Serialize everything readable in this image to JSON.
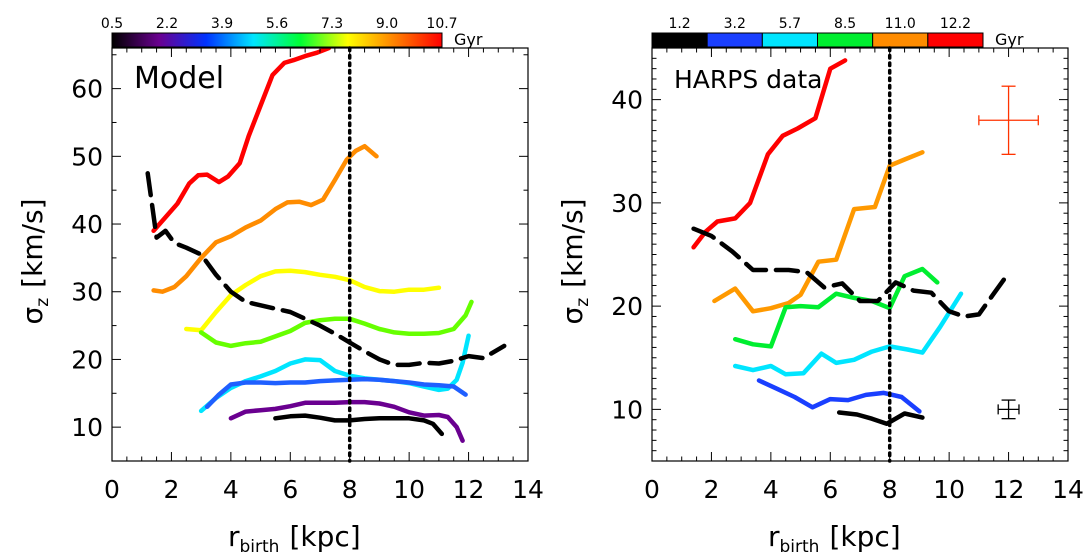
{
  "colorbar_unit": "Gyr",
  "chart_data": [
    {
      "type": "line",
      "panel_label": "Model",
      "xlabel_main": "r",
      "xlabel_sub": "birth",
      "xlabel_unit": "[kpc]",
      "ylabel_main": "σ",
      "ylabel_sub": "z",
      "ylabel_unit": "[km/s]",
      "xlim": [
        0,
        14
      ],
      "ylim": [
        5,
        66
      ],
      "xticks": [
        0,
        2,
        4,
        6,
        8,
        10,
        12,
        14
      ],
      "yticks": [
        10,
        20,
        30,
        40,
        50,
        60
      ],
      "vline_x": 8,
      "colorbar": {
        "type": "gradient",
        "tick_labels": [
          "0.5",
          "2.2",
          "3.9",
          "5.6",
          "7.3",
          "9.0",
          "10.7"
        ],
        "colors": [
          "#000000",
          "#6a0090",
          "#0033ff",
          "#00e5ff",
          "#00ff33",
          "#ffff00",
          "#ff8000",
          "#ff0000"
        ]
      },
      "series": [
        {
          "color": "#ff0000",
          "dashed": false,
          "x": [
            1.4,
            1.8,
            2.2,
            2.6,
            2.9,
            3.2,
            3.6,
            3.9,
            4.3,
            4.6,
            5.0,
            5.4,
            5.8,
            6.1,
            6.5,
            6.9,
            7.3
          ],
          "y": [
            39,
            41,
            43,
            46,
            47.2,
            47.3,
            46.2,
            47,
            49,
            53,
            57.5,
            62,
            63.8,
            64.2,
            64.8,
            65.3,
            66
          ]
        },
        {
          "color": "#ff8c00",
          "dashed": false,
          "x": [
            1.4,
            1.7,
            2.1,
            2.5,
            3.0,
            3.5,
            4.0,
            4.5,
            5.0,
            5.5,
            5.9,
            6.3,
            6.7,
            7.1,
            7.5,
            7.9,
            8.2,
            8.5,
            8.9
          ],
          "y": [
            30.2,
            30,
            30.7,
            32.3,
            35,
            37.3,
            38.2,
            39.5,
            40.5,
            42.2,
            43.2,
            43.3,
            42.8,
            43.6,
            46.5,
            49.5,
            50.8,
            51.5,
            50
          ]
        },
        {
          "color": "#ffff00",
          "dashed": false,
          "x": [
            2.5,
            3.0,
            3.5,
            4.0,
            4.5,
            5.0,
            5.5,
            6.0,
            6.5,
            7.0,
            7.5,
            8.0,
            8.5,
            9.0,
            9.5,
            10.0,
            10.5,
            11.0
          ],
          "y": [
            24.5,
            24.3,
            27,
            29.5,
            31,
            32.3,
            33,
            33.1,
            32.9,
            32.5,
            32.2,
            31.7,
            30.7,
            30.1,
            30,
            30.3,
            30.3,
            30.6
          ]
        },
        {
          "color": "#66ff00",
          "dashed": false,
          "x": [
            3.0,
            3.5,
            4.0,
            4.5,
            5.0,
            5.5,
            6.0,
            6.5,
            7.0,
            7.5,
            8.0,
            8.5,
            9.0,
            9.5,
            10.0,
            10.5,
            11.0,
            11.5,
            11.9,
            12.1
          ],
          "y": [
            24,
            22.5,
            22,
            22.4,
            22.6,
            23.4,
            24.2,
            25.4,
            25.8,
            26,
            26,
            25.3,
            24.5,
            24,
            23.8,
            23.8,
            23.9,
            24.5,
            26.5,
            28.5
          ]
        },
        {
          "color": "#00e5ff",
          "dashed": false,
          "x": [
            3.0,
            3.5,
            4.0,
            4.5,
            5.0,
            5.5,
            6.0,
            6.5,
            7.0,
            7.5,
            8.0,
            8.5,
            9.0,
            9.5,
            10.0,
            10.5,
            11.0,
            11.3,
            11.6,
            11.8,
            12.0
          ],
          "y": [
            12.4,
            14.3,
            15.8,
            16.8,
            17.5,
            18.3,
            19.4,
            20,
            19.9,
            18.3,
            17.6,
            17.2,
            17,
            16.8,
            16.5,
            16,
            15.5,
            15.7,
            17,
            19.5,
            23.5
          ]
        },
        {
          "color": "#1f5fff",
          "dashed": false,
          "x": [
            3.2,
            3.6,
            4.0,
            4.5,
            5.0,
            5.5,
            6.0,
            6.5,
            7.0,
            7.5,
            8.0,
            8.5,
            9.0,
            9.5,
            10.0,
            10.5,
            11.0,
            11.5,
            11.9
          ],
          "y": [
            13,
            14.8,
            16.3,
            16.6,
            16.6,
            16.5,
            16.6,
            16.6,
            16.8,
            16.9,
            17,
            17.1,
            17,
            16.8,
            16.6,
            16.3,
            16.2,
            16,
            14.8
          ]
        },
        {
          "color": "#6a0090",
          "dashed": false,
          "x": [
            4.0,
            4.5,
            5.0,
            5.5,
            6.0,
            6.5,
            7.0,
            7.5,
            8.0,
            8.5,
            9.0,
            9.5,
            10.0,
            10.5,
            11.0,
            11.3,
            11.6,
            11.8
          ],
          "y": [
            11.3,
            12.3,
            12.5,
            12.7,
            13.1,
            13.6,
            13.6,
            13.6,
            13.7,
            13.7,
            13.5,
            13,
            12.2,
            11.7,
            11.8,
            11.5,
            10,
            8
          ]
        },
        {
          "color": "#000000",
          "dashed": false,
          "x": [
            5.5,
            6.0,
            6.5,
            7.0,
            7.5,
            8.0,
            8.5,
            9.0,
            9.5,
            10.0,
            10.5,
            10.8,
            11.1
          ],
          "y": [
            11.3,
            11.6,
            11.7,
            11.4,
            11,
            11,
            11.2,
            11.3,
            11.3,
            11.3,
            11,
            10.5,
            9
          ]
        },
        {
          "color": "#000000",
          "dashed": true,
          "x": [
            1.2,
            1.5,
            1.8,
            2.1,
            2.5,
            3.0,
            3.5,
            4.0,
            4.5,
            5.0,
            5.5,
            6.0,
            6.5,
            7.0,
            7.5,
            8.0,
            8.5,
            9.0,
            9.5,
            10.0,
            10.5,
            11.0,
            11.5,
            12.0,
            12.5,
            13.2
          ],
          "y": [
            47.5,
            38,
            39,
            37.2,
            36.5,
            35.5,
            32.5,
            30,
            28.5,
            28,
            27.5,
            27,
            26,
            25,
            23.8,
            22.5,
            21.2,
            20,
            19.2,
            19.2,
            19.5,
            19.4,
            19.8,
            20.5,
            20.2,
            22
          ]
        }
      ]
    },
    {
      "type": "line",
      "panel_label": "HARPS data",
      "xlabel_main": "r",
      "xlabel_sub": "birth",
      "xlabel_unit": "[kpc]",
      "ylabel_main": "σ",
      "ylabel_sub": "z",
      "ylabel_unit": "[km/s]",
      "xlim": [
        0,
        14
      ],
      "ylim": [
        5,
        45
      ],
      "xticks": [
        0,
        2,
        4,
        6,
        8,
        10,
        12,
        14
      ],
      "yticks": [
        10,
        20,
        30,
        40
      ],
      "vline_x": 8,
      "colorbar": {
        "type": "discrete",
        "tick_labels": [
          "1.2",
          "3.2",
          "5.7",
          "8.5",
          "11.0",
          "12.2"
        ],
        "colors": [
          "#000000",
          "#1a3fff",
          "#00e5ff",
          "#00ee30",
          "#ff8c00",
          "#ff0000"
        ]
      },
      "error_bars": [
        {
          "color": "#ff3300",
          "x": 12.0,
          "y": 38.0,
          "xerr": 1.0,
          "yerr": 3.3
        },
        {
          "color": "#000000",
          "x": 12.0,
          "y": 10.0,
          "xerr": 0.35,
          "yerr": 0.9
        }
      ],
      "series": [
        {
          "color": "#ff0000",
          "dashed": false,
          "x": [
            1.4,
            1.8,
            2.2,
            2.8,
            3.3,
            3.9,
            4.4,
            4.9,
            5.5,
            6.0,
            6.5
          ],
          "y": [
            25.7,
            27.2,
            28.2,
            28.5,
            30,
            34.7,
            36.5,
            37.2,
            38.2,
            43,
            43.8
          ]
        },
        {
          "color": "#ff9900",
          "dashed": false,
          "x": [
            2.1,
            2.8,
            3.4,
            4.0,
            4.6,
            5.0,
            5.6,
            6.2,
            6.8,
            7.5,
            8.0,
            8.5,
            9.1
          ],
          "y": [
            20.5,
            21.7,
            19.5,
            19.8,
            20.3,
            21.1,
            24.3,
            24.5,
            29.4,
            29.6,
            33.6,
            34.2,
            34.9
          ]
        },
        {
          "color": "#00ee30",
          "dashed": false,
          "x": [
            2.8,
            3.4,
            4.0,
            4.5,
            5.0,
            5.6,
            6.2,
            6.8,
            7.4,
            8.0,
            8.5,
            9.1,
            9.6
          ],
          "y": [
            16.8,
            16.3,
            16.1,
            19.9,
            20,
            19.9,
            21.2,
            20.8,
            20.5,
            19.8,
            22.9,
            23.6,
            22.3
          ]
        },
        {
          "color": "#00e5ff",
          "dashed": false,
          "x": [
            2.8,
            3.4,
            4.0,
            4.5,
            5.1,
            5.7,
            6.2,
            6.8,
            7.4,
            8.0,
            8.6,
            9.1,
            9.7,
            10.4
          ],
          "y": [
            14.2,
            13.8,
            14.2,
            13.4,
            13.5,
            15.4,
            14.5,
            14.8,
            15.6,
            16.1,
            15.8,
            15.5,
            18,
            21.2
          ]
        },
        {
          "color": "#1a3fff",
          "dashed": false,
          "x": [
            3.6,
            4.2,
            4.8,
            5.4,
            6.0,
            6.6,
            7.2,
            7.8,
            8.4,
            9.0
          ],
          "y": [
            12.8,
            12,
            11.2,
            10.2,
            11,
            10.9,
            11.4,
            11.6,
            11.2,
            9.8
          ]
        },
        {
          "color": "#000000",
          "dashed": false,
          "x": [
            6.3,
            6.9,
            7.4,
            7.9,
            8.5,
            9.1
          ],
          "y": [
            9.7,
            9.5,
            9.1,
            8.6,
            9.6,
            9.2
          ]
        },
        {
          "color": "#000000",
          "dashed": true,
          "x": [
            1.4,
            2.0,
            2.7,
            3.4,
            4.0,
            4.6,
            5.2,
            5.8,
            6.4,
            7.0,
            7.6,
            8.2,
            8.8,
            9.4,
            10.0,
            10.5,
            11.0,
            11.5,
            12.0
          ],
          "y": [
            27.5,
            26.8,
            25.3,
            23.5,
            23.5,
            23.5,
            23.3,
            21.8,
            22.2,
            20.5,
            20.5,
            22.3,
            21.5,
            21.3,
            19.5,
            19,
            19.2,
            21.2,
            23.2
          ]
        }
      ]
    }
  ]
}
